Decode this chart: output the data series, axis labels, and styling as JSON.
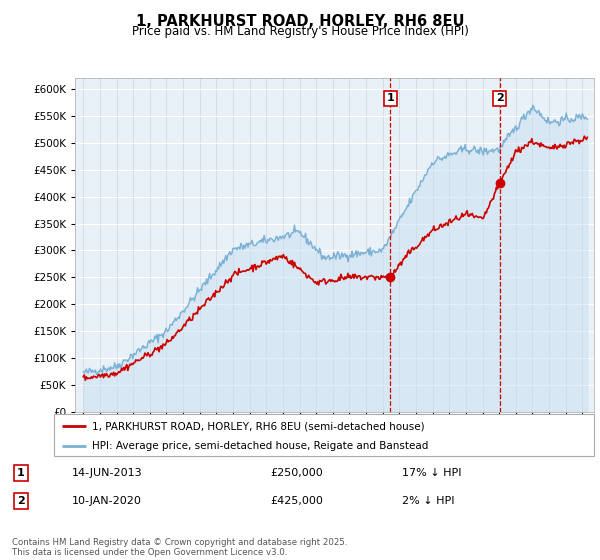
{
  "title": "1, PARKHURST ROAD, HORLEY, RH6 8EU",
  "subtitle": "Price paid vs. HM Land Registry's House Price Index (HPI)",
  "ylim": [
    0,
    620000
  ],
  "yticks": [
    0,
    50000,
    100000,
    150000,
    200000,
    250000,
    300000,
    350000,
    400000,
    450000,
    500000,
    550000,
    600000
  ],
  "xlim_start": 1994.5,
  "xlim_end": 2025.7,
  "sale1_date": 2013.45,
  "sale1_price": 250000,
  "sale1_label": "1",
  "sale2_date": 2020.03,
  "sale2_price": 425000,
  "sale2_label": "2",
  "legend_property": "1, PARKHURST ROAD, HORLEY, RH6 8EU (semi-detached house)",
  "legend_hpi": "HPI: Average price, semi-detached house, Reigate and Banstead",
  "transaction1": "14-JUN-2013",
  "transaction1_price": "£250,000",
  "transaction1_pct": "17% ↓ HPI",
  "transaction2": "10-JAN-2020",
  "transaction2_price": "£425,000",
  "transaction2_pct": "2% ↓ HPI",
  "property_color": "#cc0000",
  "hpi_color": "#7ab0d4",
  "hpi_fill": "#c8dff0",
  "vline_color": "#cc0000",
  "background_color": "#ffffff",
  "plot_bg_color": "#e8f0f8",
  "footer": "Contains HM Land Registry data © Crown copyright and database right 2025.\nThis data is licensed under the Open Government Licence v3.0."
}
